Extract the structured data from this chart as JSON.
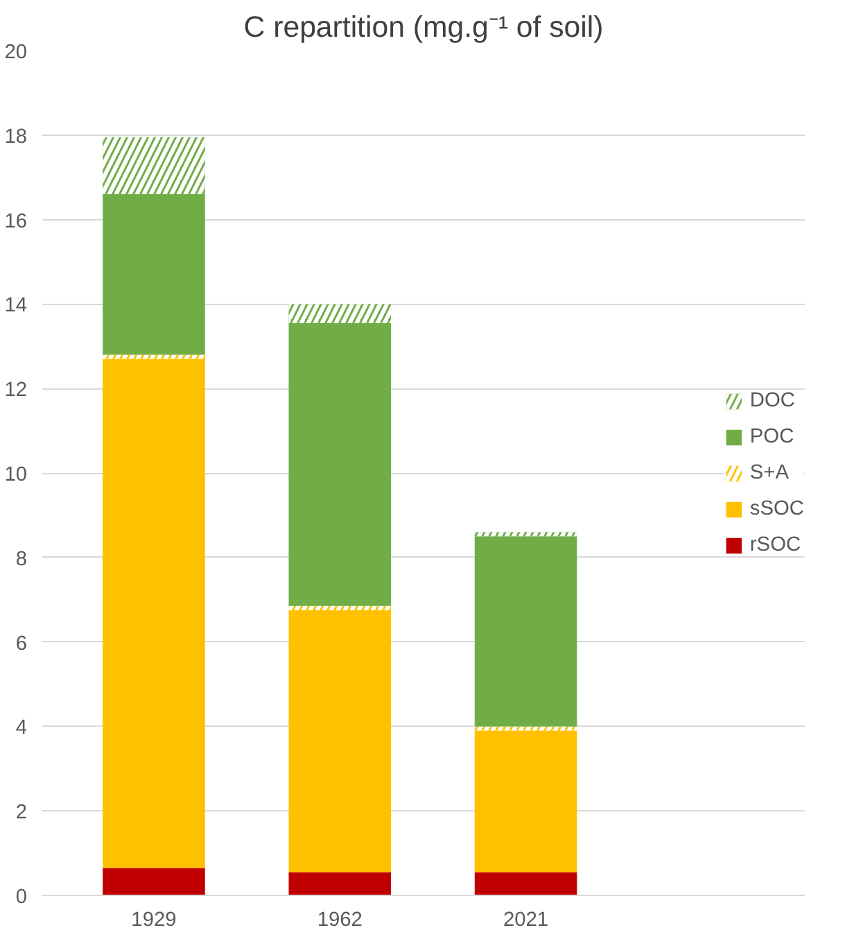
{
  "chart_data": {
    "type": "bar",
    "title": "C repartition (mg.g⁻¹ of soil)",
    "categories": [
      "1929",
      "1962",
      "2021"
    ],
    "stacked": true,
    "series": [
      {
        "name": "rSOC",
        "color": "#c00000",
        "values": [
          0.65,
          0.55,
          0.55
        ]
      },
      {
        "name": "sSOC",
        "color": "#ffc000",
        "values": [
          12.05,
          6.2,
          3.35
        ]
      },
      {
        "name": "S+A",
        "color": "#ffc000",
        "values": [
          0.1,
          0.1,
          0.1
        ]
      },
      {
        "name": "POC",
        "color": "#70ad47",
        "values": [
          3.8,
          6.7,
          4.5
        ]
      },
      {
        "name": "DOC",
        "color": "#70ad47",
        "values": [
          1.35,
          0.45,
          0.1
        ]
      }
    ],
    "ylim": [
      0,
      20
    ],
    "yticks": [
      0,
      2,
      4,
      6,
      8,
      10,
      12,
      14,
      16,
      18,
      20
    ],
    "grid": "y",
    "legend": "right"
  }
}
